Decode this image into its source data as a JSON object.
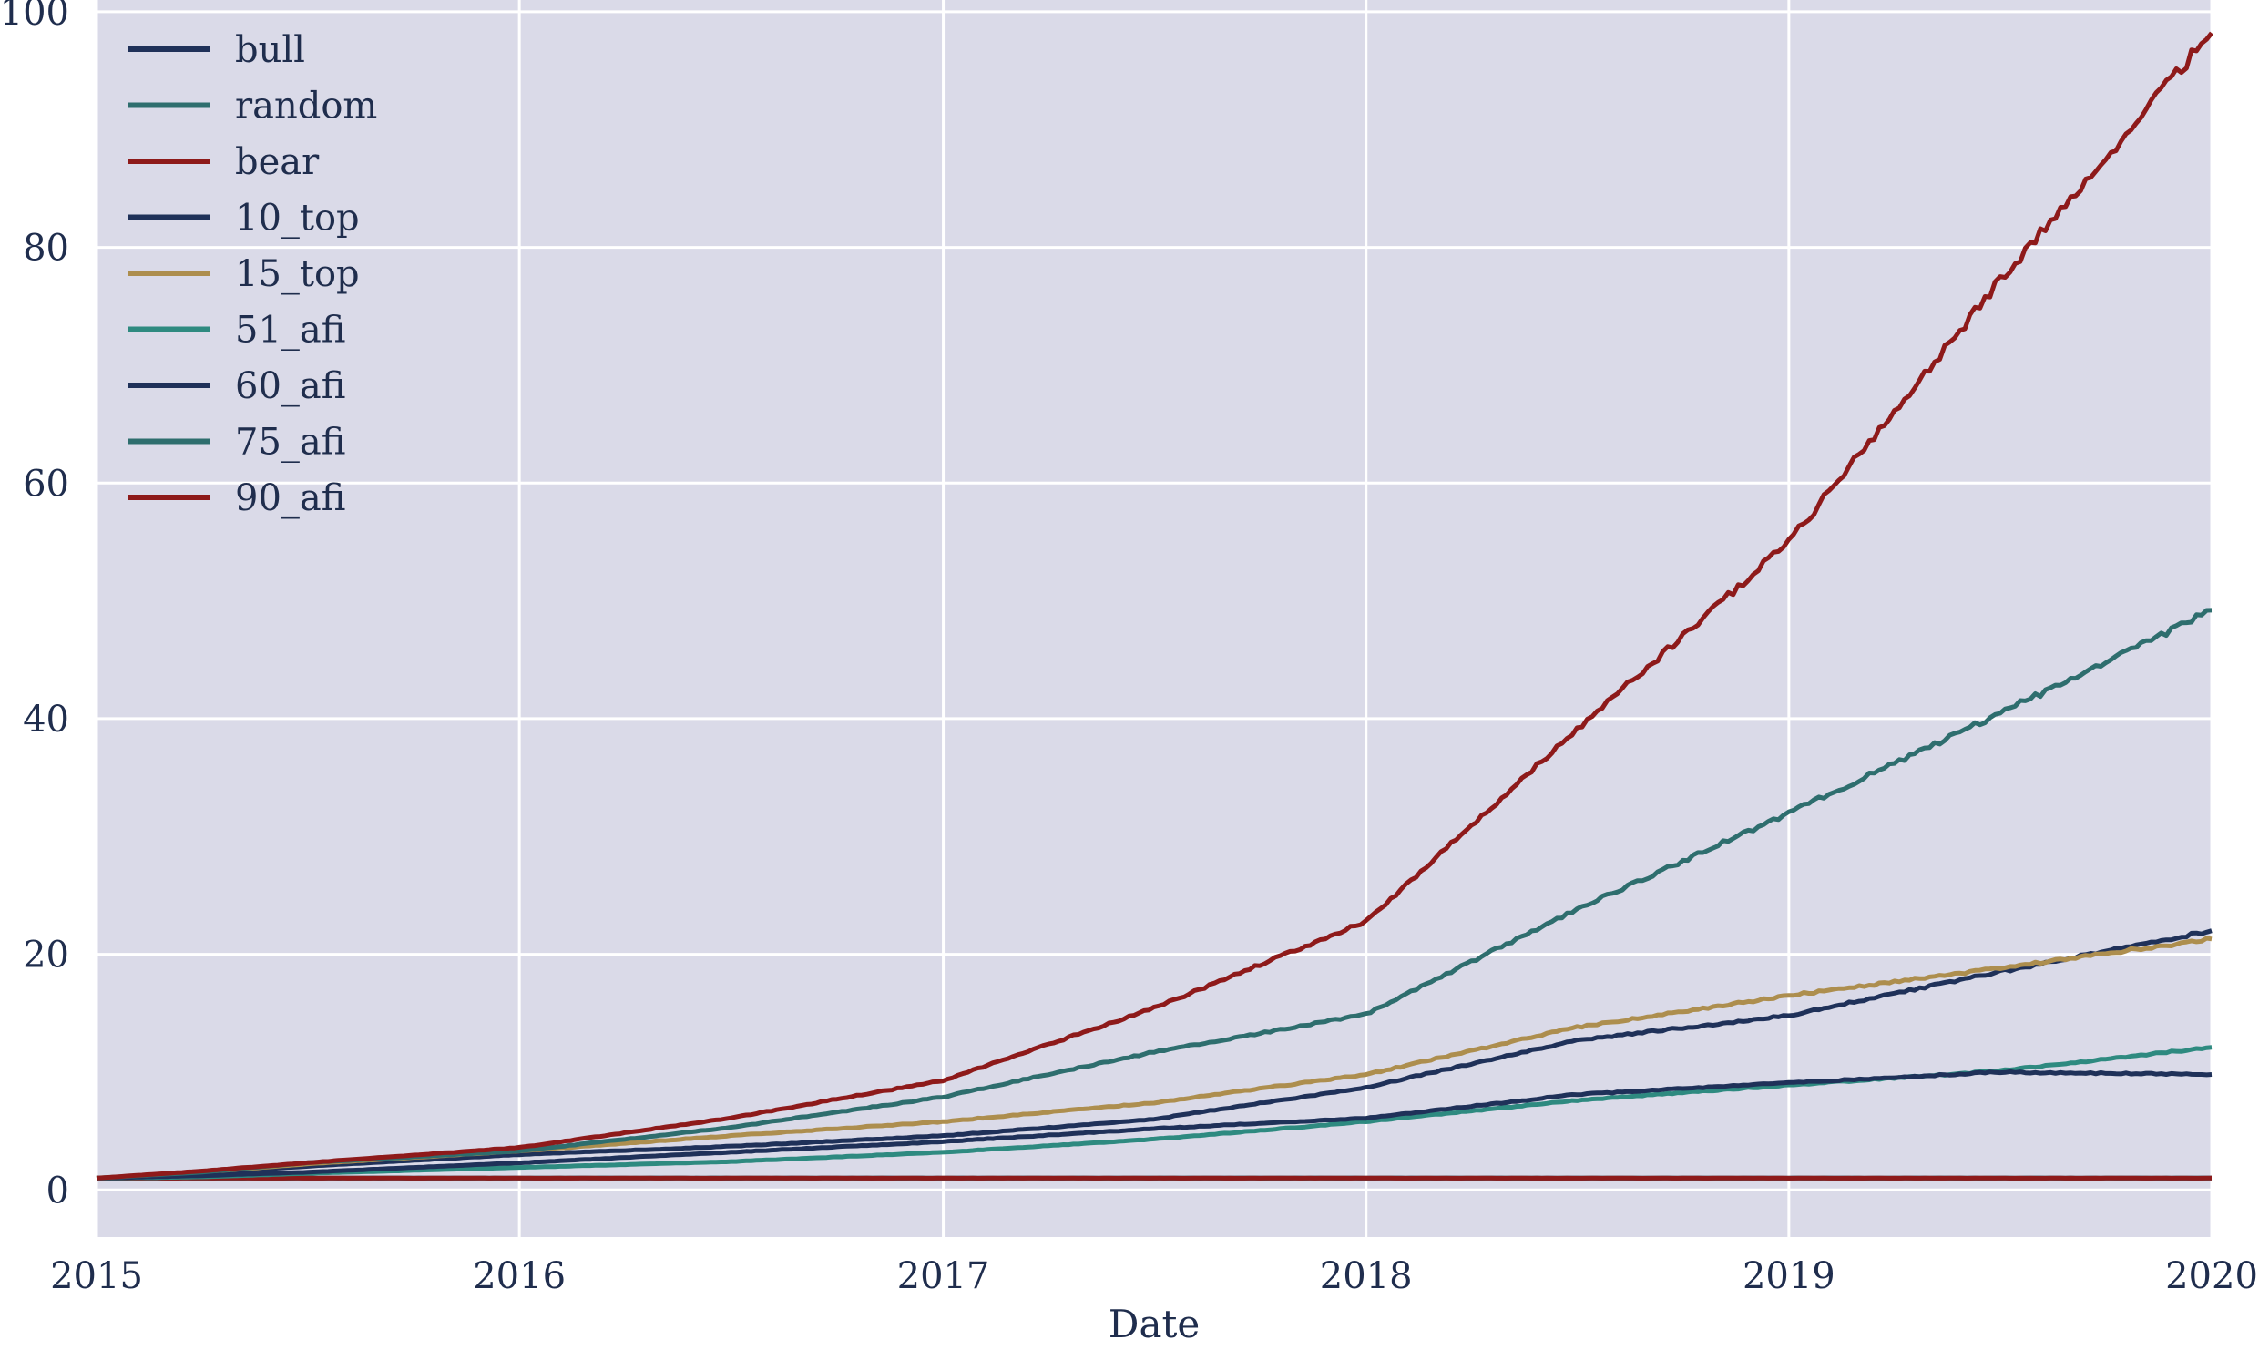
{
  "chart_data": {
    "type": "line",
    "title": "",
    "xlabel": "Date",
    "ylabel": "",
    "xlim": [
      "2015-01-01",
      "2020-01-01"
    ],
    "ylim": [
      -4,
      101
    ],
    "x_ticks": [
      "2015",
      "2016",
      "2017",
      "2018",
      "2019",
      "2020"
    ],
    "y_ticks": [
      0,
      20,
      40,
      60,
      80,
      100
    ],
    "grid": true,
    "legend_position": "top-left",
    "background_color": "#dadaE8",
    "grid_color": "#ffffff",
    "x": [
      "2015-01-01",
      "2015-04-01",
      "2015-07-01",
      "2016-01-01",
      "2016-07-01",
      "2017-01-01",
      "2017-07-01",
      "2018-01-01",
      "2018-07-01",
      "2019-01-01",
      "2019-07-01",
      "2020-01-01"
    ],
    "series": [
      {
        "name": "bull",
        "color": "#1f3159",
        "values": [
          1,
          1,
          1,
          1,
          1,
          1,
          1,
          1,
          1,
          1,
          1,
          1
        ]
      },
      {
        "name": "random",
        "color": "#2e6e6e",
        "values": [
          1,
          1,
          1,
          1,
          1,
          1,
          1,
          1,
          1,
          1,
          1,
          1
        ]
      },
      {
        "name": "bear",
        "color": "#8e1a1a",
        "values": [
          1,
          1,
          1,
          1,
          1,
          1,
          1,
          1,
          1,
          1,
          1,
          1
        ]
      },
      {
        "name": "10_top",
        "color": "#1f3159",
        "values": [
          1,
          1.4,
          2.0,
          3.0,
          3.7,
          4.6,
          6.0,
          8.7,
          12.7,
          14.8,
          18.5,
          22.0
        ]
      },
      {
        "name": "15_top",
        "color": "#ad8e4e",
        "values": [
          1,
          1.5,
          2.2,
          3.3,
          4.6,
          5.8,
          7.4,
          9.8,
          13.8,
          16.5,
          18.8,
          21.3
        ]
      },
      {
        "name": "51_afi",
        "color": "#2e8a80",
        "values": [
          1,
          1.1,
          1.4,
          1.9,
          2.4,
          3.2,
          4.3,
          5.8,
          7.6,
          8.9,
          10.1,
          12.1
        ]
      },
      {
        "name": "60_afi",
        "color": "#1f3159",
        "values": [
          1,
          1.2,
          1.5,
          2.3,
          3.2,
          4.1,
          5.2,
          6.1,
          8.1,
          9.1,
          10.0,
          9.8
        ]
      },
      {
        "name": "75_afi",
        "color": "#2e6e6e",
        "values": [
          1,
          1.5,
          2.3,
          3.3,
          5.3,
          7.9,
          11.7,
          14.9,
          23.8,
          32.0,
          40.4,
          49.2
        ]
      },
      {
        "name": "90_afi",
        "color": "#8e1a1a",
        "values": [
          1,
          1.6,
          2.3,
          3.6,
          6.1,
          9.3,
          15.4,
          22.8,
          39.0,
          55.0,
          77.0,
          98.2
        ]
      }
    ]
  }
}
